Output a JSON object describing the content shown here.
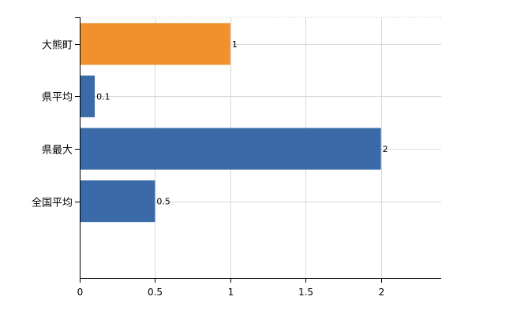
{
  "chart_data": {
    "type": "bar",
    "orientation": "horizontal",
    "categories": [
      "大熊町",
      "県平均",
      "県最大",
      "全国平均"
    ],
    "values": [
      1,
      0.1,
      2,
      0.5
    ],
    "data_labels": [
      "1",
      "0.1",
      "2",
      "0.5"
    ],
    "xlim": [
      0,
      2.4
    ],
    "x_ticks": [
      0,
      0.5,
      1,
      1.5,
      2
    ],
    "x_tick_labels": [
      "0",
      "0.5",
      "1",
      "1.5",
      "2"
    ],
    "grid": true,
    "legend": "none",
    "title": "",
    "xlabel": "",
    "ylabel": "",
    "colors": {
      "highlight": "#f0902e",
      "default": "#3a6ba8"
    },
    "highlight_index": 0
  }
}
